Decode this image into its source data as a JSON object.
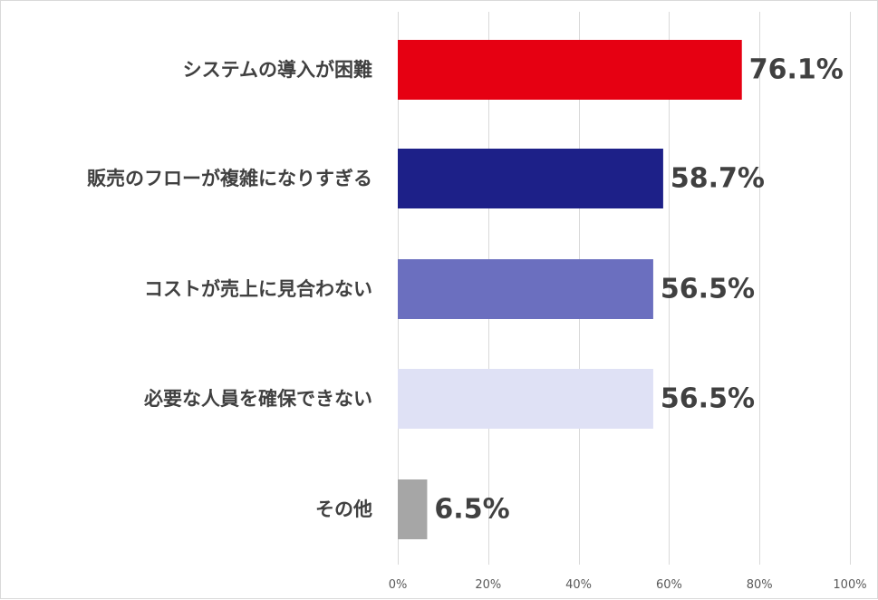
{
  "chart_data": {
    "type": "bar",
    "orientation": "horizontal",
    "categories": [
      "システムの導入が困難",
      "販売のフローが複雑になりすぎる",
      "コストが売上に見合わない",
      "必要な人員を確保できない",
      "その他"
    ],
    "values": [
      76.1,
      58.7,
      56.5,
      56.5,
      6.5
    ],
    "data_labels": [
      "76.1%",
      "58.7%",
      "56.5%",
      "56.5%",
      "6.5%"
    ],
    "bar_colors": [
      "#e60012",
      "#1d2088",
      "#6b6fbf",
      "#dfe1f5",
      "#a6a6a6"
    ],
    "xlim": [
      0,
      100
    ],
    "x_ticks": [
      0,
      20,
      40,
      60,
      80,
      100
    ],
    "x_tick_labels": [
      "0%",
      "20%",
      "40%",
      "60%",
      "80%",
      "100%"
    ],
    "grid": true,
    "legend": "none"
  }
}
